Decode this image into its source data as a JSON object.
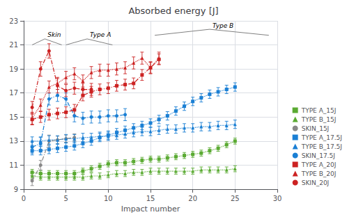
{
  "chart_data": {
    "type": "line",
    "title": "Absorbed energy [J]",
    "x_label": "Impact number",
    "xlim": [
      0,
      30
    ],
    "ylim": [
      9,
      23
    ],
    "xticks": [
      0,
      5,
      10,
      15,
      20,
      25,
      30
    ],
    "yticks": [
      9,
      11,
      13,
      15,
      17,
      19,
      21,
      23
    ],
    "grid": true,
    "legend": "lower right",
    "series": [
      {
        "name": "TYPE A_15J",
        "color": "#5aaa32",
        "marker": "square",
        "line_style": "dotted",
        "x": [
          1,
          2,
          3,
          4,
          5,
          6,
          7,
          8,
          9,
          10,
          11,
          12,
          13,
          14,
          15,
          16,
          17,
          18,
          19,
          20,
          21,
          22,
          23,
          24,
          25
        ],
        "values": [
          10.4,
          10.3,
          10.3,
          10.3,
          10.3,
          10.3,
          10.5,
          10.7,
          10.9,
          11.1,
          11.2,
          11.2,
          11.3,
          11.4,
          11.5,
          11.5,
          11.6,
          11.7,
          11.8,
          11.9,
          12.0,
          12.2,
          12.4,
          12.7,
          13.0
        ],
        "yerr": [
          0.25,
          0.25,
          0.25,
          0.25,
          0.25,
          0.25,
          0.25,
          0.25,
          0.25,
          0.25,
          0.25,
          0.25,
          0.25,
          0.25,
          0.25,
          0.25,
          0.25,
          0.25,
          0.25,
          0.25,
          0.25,
          0.25,
          0.25,
          0.25,
          0.25
        ]
      },
      {
        "name": "TYPE B_15J",
        "color": "#5aaa32",
        "marker": "triangle",
        "line_style": "dotted",
        "x": [
          1,
          2,
          3,
          4,
          5,
          6,
          7,
          8,
          9,
          10,
          11,
          12,
          13,
          14,
          15,
          16,
          17,
          18,
          19,
          20,
          21,
          22,
          23,
          24,
          25
        ],
        "values": [
          10.1,
          10.0,
          10.0,
          10.0,
          10.0,
          10.0,
          10.0,
          10.1,
          10.1,
          10.2,
          10.3,
          10.3,
          10.4,
          10.4,
          10.5,
          10.5,
          10.5,
          10.5,
          10.5,
          10.5,
          10.6,
          10.6,
          10.6,
          10.6,
          10.7
        ],
        "yerr": [
          0.25,
          0.25,
          0.25,
          0.25,
          0.25,
          0.25,
          0.25,
          0.25,
          0.25,
          0.25,
          0.25,
          0.25,
          0.25,
          0.25,
          0.25,
          0.25,
          0.25,
          0.25,
          0.25,
          0.25,
          0.25,
          0.25,
          0.25,
          0.25,
          0.25
        ]
      },
      {
        "name": "SKIN_15J",
        "color": "#888888",
        "marker": "circle",
        "line_style": "dashdot",
        "x": [
          1,
          2,
          3,
          4,
          5,
          6
        ],
        "values": [
          9.7,
          11.0,
          13.0,
          13.1,
          13.2,
          13.3
        ],
        "yerr": [
          0.4,
          0.4,
          0.5,
          0.3,
          0.3,
          0.3
        ]
      },
      {
        "name": "TYPE A_17.5J",
        "color": "#1a7fd4",
        "marker": "square",
        "line_style": "dotted",
        "x": [
          1,
          2,
          3,
          4,
          5,
          6,
          7,
          8,
          9,
          10,
          11,
          12,
          13,
          14,
          15,
          16,
          17,
          18,
          19,
          20,
          21,
          22,
          23,
          24,
          25
        ],
        "values": [
          12.2,
          12.2,
          12.3,
          12.4,
          12.5,
          12.6,
          12.8,
          13.0,
          13.3,
          13.5,
          13.7,
          13.9,
          14.1,
          14.3,
          14.5,
          14.8,
          15.1,
          15.5,
          15.9,
          16.3,
          16.6,
          16.9,
          17.1,
          17.3,
          17.5
        ],
        "yerr": [
          0.35,
          0.35,
          0.35,
          0.35,
          0.35,
          0.35,
          0.35,
          0.35,
          0.35,
          0.35,
          0.35,
          0.35,
          0.35,
          0.35,
          0.35,
          0.35,
          0.35,
          0.35,
          0.35,
          0.35,
          0.35,
          0.35,
          0.35,
          0.35,
          0.35
        ]
      },
      {
        "name": "TYPE B_17.5J",
        "color": "#1a7fd4",
        "marker": "triangle",
        "line_style": "dotted",
        "x": [
          1,
          2,
          3,
          4,
          5,
          6,
          7,
          8,
          9,
          10,
          11,
          12,
          13,
          14,
          15,
          16,
          17,
          18,
          19,
          20,
          21,
          22,
          23,
          24,
          25
        ],
        "values": [
          13.0,
          13.0,
          13.1,
          13.1,
          13.2,
          13.2,
          13.3,
          13.3,
          13.4,
          13.4,
          13.5,
          13.6,
          13.7,
          13.8,
          13.8,
          13.9,
          14.0,
          14.0,
          14.1,
          14.1,
          14.2,
          14.2,
          14.3,
          14.3,
          14.4
        ],
        "yerr": [
          0.35,
          0.35,
          0.35,
          0.35,
          0.35,
          0.35,
          0.35,
          0.35,
          0.35,
          0.35,
          0.35,
          0.35,
          0.35,
          0.35,
          0.35,
          0.35,
          0.35,
          0.35,
          0.35,
          0.35,
          0.35,
          0.35,
          0.35,
          0.35,
          0.35
        ]
      },
      {
        "name": "SKIN_17.5J",
        "color": "#1a7fd4",
        "marker": "circle",
        "line_style": "dashdot",
        "x": [
          1,
          2,
          3,
          4,
          5,
          6,
          7,
          8,
          9,
          10,
          11,
          12
        ],
        "values": [
          12.5,
          12.8,
          16.5,
          16.8,
          16.5,
          15.1,
          14.9,
          15.0,
          15.0,
          15.1,
          15.1,
          15.2
        ],
        "yerr": [
          0.5,
          0.5,
          0.5,
          0.5,
          0.5,
          0.5,
          0.5,
          0.5,
          0.5,
          0.5,
          0.5,
          0.5
        ]
      },
      {
        "name": "TYPE A_20J",
        "color": "#cc2222",
        "marker": "square",
        "line_style": "dashdot",
        "x": [
          1,
          2,
          3,
          4,
          5,
          6,
          7,
          8,
          9,
          10,
          11,
          12,
          13,
          14,
          15,
          16
        ],
        "values": [
          14.8,
          15.0,
          15.2,
          15.3,
          15.4,
          15.6,
          16.8,
          17.1,
          17.3,
          17.4,
          17.6,
          17.7,
          17.8,
          18.5,
          19.1,
          19.8
        ],
        "yerr": [
          0.45,
          0.45,
          0.45,
          0.45,
          0.45,
          0.45,
          0.45,
          0.45,
          0.45,
          0.45,
          0.45,
          0.45,
          0.45,
          0.45,
          0.45,
          0.45
        ]
      },
      {
        "name": "TYPE B_20J",
        "color": "#cc2222",
        "marker": "triangle",
        "line_style": "dotted",
        "x": [
          1,
          2,
          3,
          4,
          5,
          6,
          7,
          8,
          9,
          10,
          11,
          12,
          13,
          14,
          15,
          16
        ],
        "values": [
          14.9,
          16.0,
          17.5,
          17.8,
          18.3,
          18.6,
          18.0,
          18.7,
          18.9,
          18.9,
          19.0,
          19.1,
          19.5,
          19.9,
          19.1,
          19.9
        ],
        "yerr": [
          0.5,
          0.5,
          0.5,
          0.5,
          0.5,
          0.5,
          0.5,
          0.5,
          0.5,
          0.5,
          0.5,
          0.5,
          0.5,
          0.5,
          0.5,
          0.5
        ]
      },
      {
        "name": "SKIN_20J",
        "color": "#cc2222",
        "marker": "circle",
        "line_style": "dashdot",
        "x": [
          1,
          2,
          3,
          4,
          5,
          6,
          7,
          8
        ],
        "values": [
          15.8,
          19.0,
          20.5,
          17.6,
          17.2,
          17.4,
          17.3,
          17.3
        ],
        "yerr": [
          0.5,
          0.6,
          0.6,
          0.6,
          0.5,
          0.5,
          0.5,
          0.5
        ]
      }
    ],
    "annotations": [
      {
        "text": "Skin",
        "x": 2.5,
        "y": 21.5,
        "span": [
          1.0,
          4.5
        ],
        "y_base": 21.0
      },
      {
        "text": "Type A",
        "x": 7.5,
        "y": 21.5,
        "span": [
          5.0,
          10.5
        ],
        "y_base": 21.0
      },
      {
        "text": "Type B",
        "x": 22.0,
        "y": 22.3,
        "span": [
          15.5,
          29.0
        ],
        "y_base": 21.8
      }
    ]
  }
}
